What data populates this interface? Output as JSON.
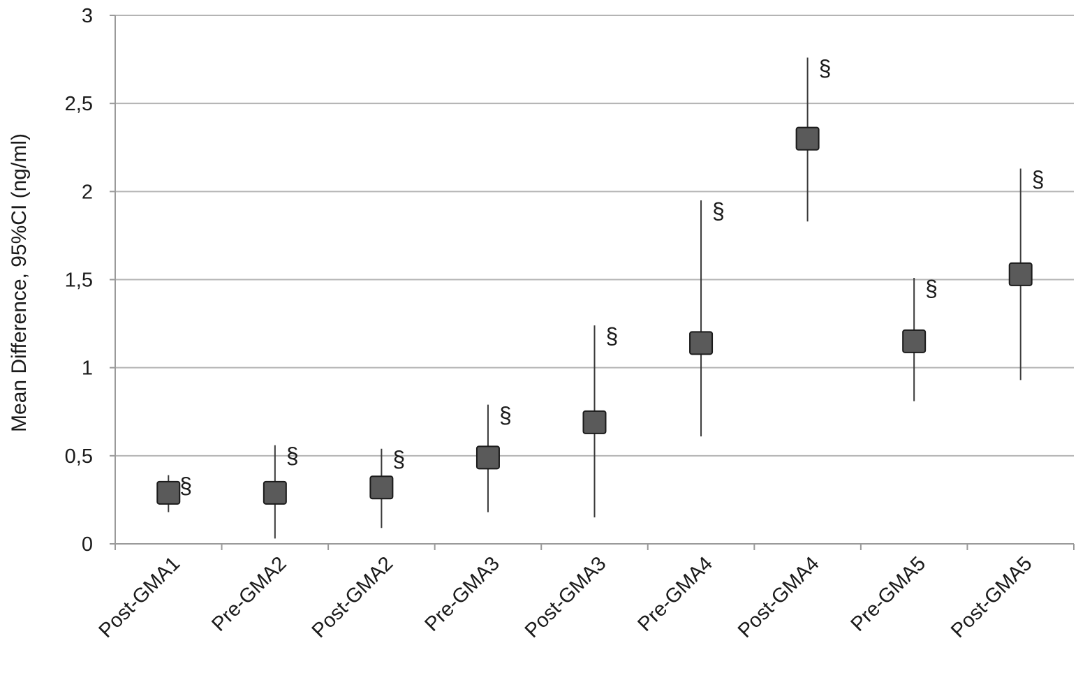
{
  "chart_data": {
    "type": "scatter",
    "title": "",
    "xlabel": "",
    "ylabel": "Mean Difference, 95%CI (ng/ml)",
    "ylim": [
      0,
      3
    ],
    "yticks": [
      {
        "value": 0,
        "label": "0"
      },
      {
        "value": 0.5,
        "label": "0,5"
      },
      {
        "value": 1,
        "label": "1"
      },
      {
        "value": 1.5,
        "label": "1,5"
      },
      {
        "value": 2,
        "label": "2"
      },
      {
        "value": 2.5,
        "label": "2,5"
      },
      {
        "value": 3,
        "label": "3"
      }
    ],
    "grid": true,
    "marker_color": "#5a5a5a",
    "categories": [
      "Post-GMA1",
      "Pre-GMA2",
      "Post-GMA2",
      "Pre-GMA3",
      "Post-GMA3",
      "Pre-GMA4",
      "Post-GMA4",
      "Pre-GMA5",
      "Post-GMA5"
    ],
    "points": [
      {
        "category": "Post-GMA1",
        "mean": 0.29,
        "ci_low": 0.18,
        "ci_high": 0.39,
        "annotation": "§"
      },
      {
        "category": "Pre-GMA2",
        "mean": 0.29,
        "ci_low": 0.03,
        "ci_high": 0.56,
        "annotation": "§"
      },
      {
        "category": "Post-GMA2",
        "mean": 0.32,
        "ci_low": 0.09,
        "ci_high": 0.54,
        "annotation": "§"
      },
      {
        "category": "Pre-GMA3",
        "mean": 0.49,
        "ci_low": 0.18,
        "ci_high": 0.79,
        "annotation": "§"
      },
      {
        "category": "Post-GMA3",
        "mean": 0.69,
        "ci_low": 0.15,
        "ci_high": 1.24,
        "annotation": "§"
      },
      {
        "category": "Pre-GMA4",
        "mean": 1.14,
        "ci_low": 0.61,
        "ci_high": 1.95,
        "annotation": "§"
      },
      {
        "category": "Post-GMA4",
        "mean": 2.3,
        "ci_low": 1.83,
        "ci_high": 2.76,
        "annotation": "§"
      },
      {
        "category": "Pre-GMA5",
        "mean": 1.15,
        "ci_low": 0.81,
        "ci_high": 1.51,
        "annotation": "§"
      },
      {
        "category": "Post-GMA5",
        "mean": 1.53,
        "ci_low": 0.93,
        "ci_high": 2.13,
        "annotation": "§"
      }
    ]
  }
}
